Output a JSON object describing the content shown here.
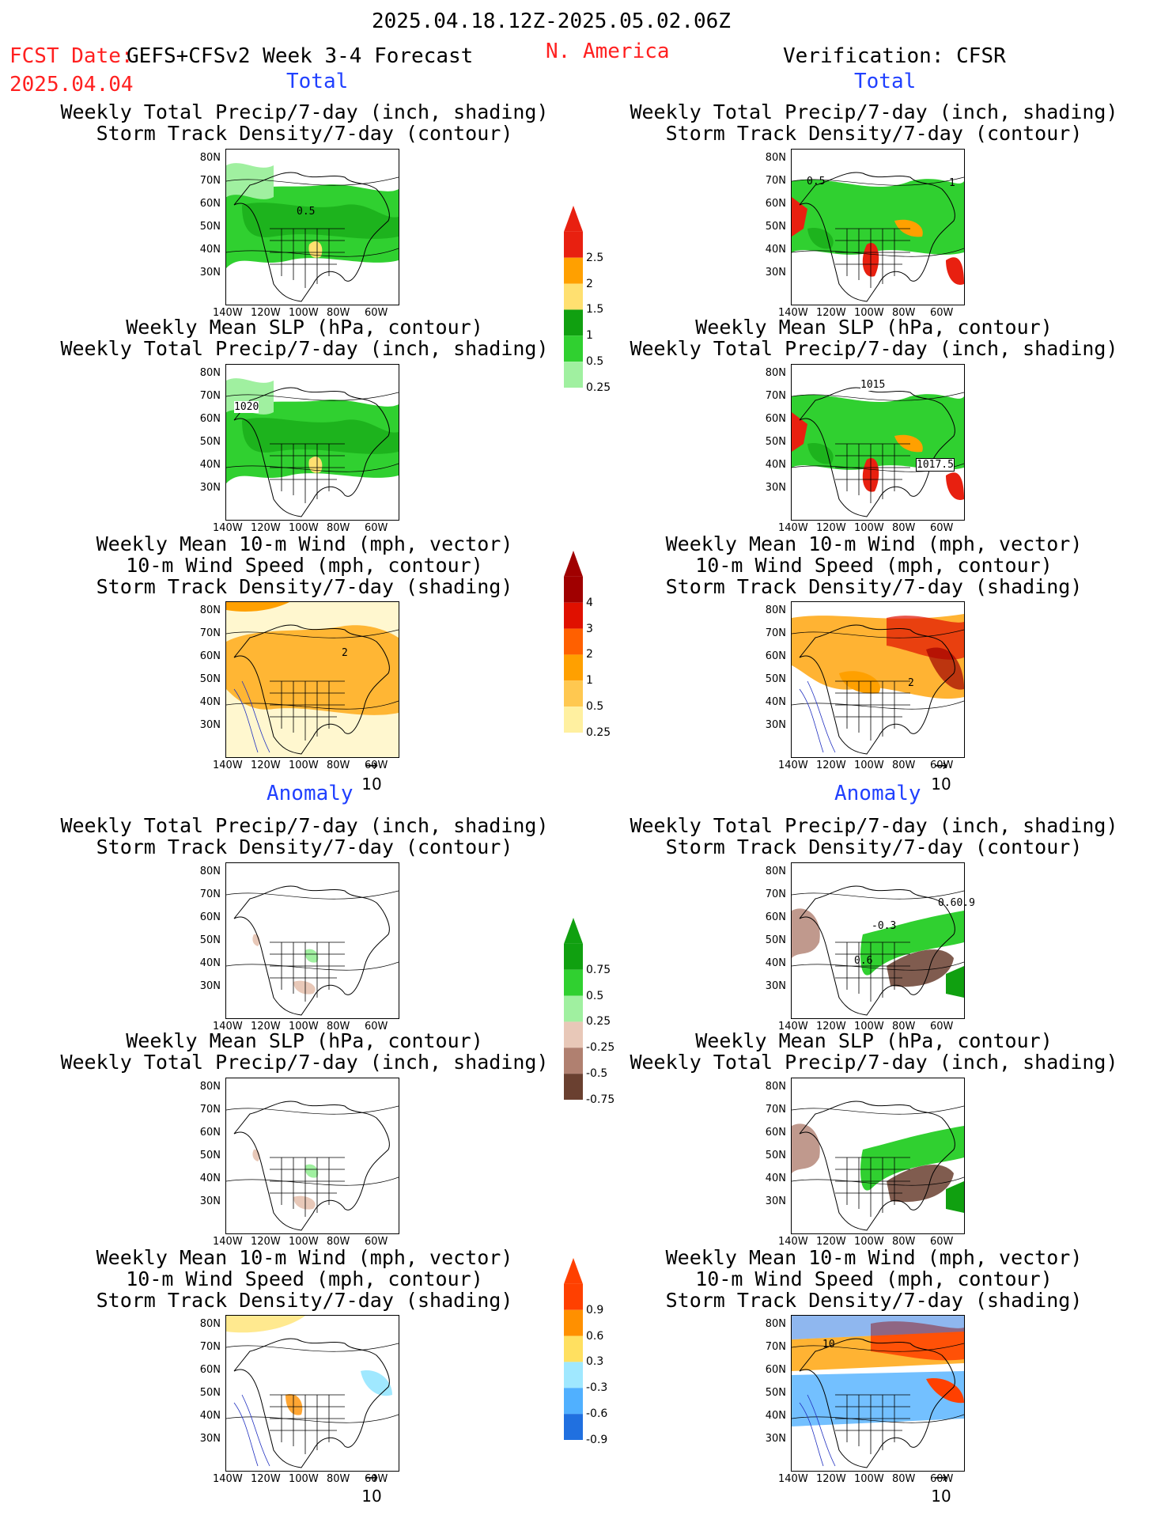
{
  "header": {
    "period": "2025.04.18.12Z-2025.05.02.06Z",
    "fcst_date_label": "FCST Date:",
    "model_label": "GEFS+CFSv2 Week 3-4 Forecast",
    "fcst_date": "2025.04.04",
    "region": "N. America",
    "verification": "Verification: CFSR"
  },
  "sections": {
    "total": "Total",
    "anomaly": "Anomaly"
  },
  "titles": {
    "precip_storm": [
      "Weekly Total Precip/7-day (inch, shading)",
      "Storm Track Density/7-day (contour)"
    ],
    "slp_precip": [
      "Weekly Mean SLP (hPa, contour)",
      "Weekly Total Precip/7-day (inch, shading)"
    ],
    "wind": [
      "Weekly Mean 10-m Wind (mph, vector)",
      "10-m Wind Speed (mph, contour)",
      "Storm Track Density/7-day (shading)"
    ]
  },
  "axes": {
    "lat": [
      "80N",
      "70N",
      "60N",
      "50N",
      "40N",
      "30N"
    ],
    "lon": [
      "140W",
      "120W",
      "100W",
      "80W",
      "60W"
    ]
  },
  "vector_ref": "10",
  "colorbars": {
    "precip_total": {
      "labels": [
        "2.5",
        "2",
        "1.5",
        "1",
        "0.5",
        "0.25"
      ],
      "colors": [
        "#e82010",
        "#ffa000",
        "#ffe070",
        "#10a010",
        "#30d030",
        "#a0f0a0"
      ]
    },
    "storm_total": {
      "labels": [
        "4",
        "3",
        "2",
        "1",
        "0.5",
        "0.25"
      ],
      "colors": [
        "#a00000",
        "#e01000",
        "#ff6000",
        "#ffa000",
        "#ffc850",
        "#fff0a0"
      ]
    },
    "precip_anom": {
      "labels": [
        "0.75",
        "0.5",
        "0.25",
        "-0.25",
        "-0.5",
        "-0.75"
      ],
      "colors": [
        "#10a010",
        "#30d030",
        "#a0f0a0",
        "#e8c8b8",
        "#b08070",
        "#6a4030"
      ]
    },
    "storm_anom": {
      "labels": [
        "0.9",
        "0.6",
        "0.3",
        "-0.3",
        "-0.6",
        "-0.9"
      ],
      "colors": [
        "#ff4000",
        "#ff9000",
        "#ffe060",
        "#a0e8ff",
        "#50b0ff",
        "#2070e0"
      ]
    }
  },
  "annotations": {
    "p1_contour": "0.5",
    "p2_slp": "1020",
    "p3_wind": "2",
    "v1_contour": "0.5",
    "v1_contour_b": "1",
    "v2_slp_a": "1015",
    "v2_slp_b": "1017.5",
    "v3_wind": "2",
    "va1_contour": "0.60.9",
    "va1_contour_b": "-0.3",
    "va1_contour_c": "0.6",
    "va3_wind": "10"
  }
}
